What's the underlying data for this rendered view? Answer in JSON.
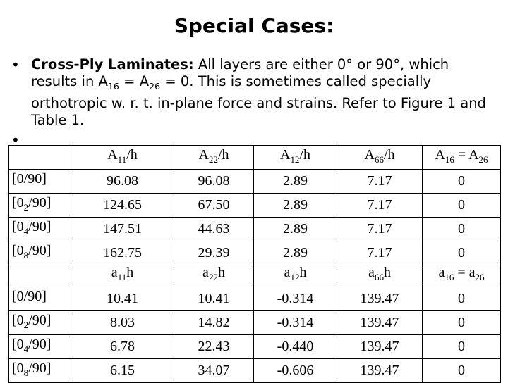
{
  "title": "Special Cases:",
  "bullet1": {
    "term": "Cross-Ply Laminates:",
    "text_a": " All layers are either 0° or 90°, which results in A",
    "sub_a": "16",
    "text_b": " = A",
    "sub_b": "26",
    "text_c": " = 0. This is sometimes called specially orthotropic w. r. t. in-plane force and strains. Refer to Figure 1 and Table 1."
  },
  "bullet_char": "•",
  "table1": {
    "headers": [
      {
        "base": "A",
        "sub": "11",
        "suffix": "/h"
      },
      {
        "base": "A",
        "sub": "22",
        "suffix": "/h"
      },
      {
        "base": "A",
        "sub": "12",
        "suffix": "/h"
      },
      {
        "base": "A",
        "sub": "66",
        "suffix": "/h"
      },
      {
        "base": "A",
        "sub": "16",
        "mid": " = A",
        "sub2": "26"
      }
    ],
    "rows": [
      {
        "lam_a": "[0/90]",
        "lam_sub": "",
        "lam_b": "",
        "values": [
          "96.08",
          "96.08",
          "2.89",
          "7.17",
          "0"
        ]
      },
      {
        "lam_a": "[0",
        "lam_sub": "2",
        "lam_b": "/90]",
        "values": [
          "124.65",
          "67.50",
          "2.89",
          "7.17",
          "0"
        ]
      },
      {
        "lam_a": "[0",
        "lam_sub": "4",
        "lam_b": "/90]",
        "values": [
          "147.51",
          "44.63",
          "2.89",
          "7.17",
          "0"
        ]
      },
      {
        "lam_a": "[0",
        "lam_sub": "8",
        "lam_b": "/90]",
        "values": [
          "162.75",
          "29.39",
          "2.89",
          "7.17",
          "0"
        ]
      }
    ]
  },
  "table2": {
    "headers": [
      {
        "base": "a",
        "sub": "11",
        "suffix": "h"
      },
      {
        "base": "a",
        "sub": "22",
        "suffix": "h"
      },
      {
        "base": "a",
        "sub": "12",
        "suffix": "h"
      },
      {
        "base": "a",
        "sub": "66",
        "suffix": "h"
      },
      {
        "base": "a",
        "sub": "16",
        "mid": " = a",
        "sub2": "26"
      }
    ],
    "rows": [
      {
        "lam_a": "[0/90]",
        "lam_sub": "",
        "lam_b": "",
        "values": [
          "10.41",
          "10.41",
          "-0.314",
          "139.47",
          "0"
        ]
      },
      {
        "lam_a": "[0",
        "lam_sub": "2",
        "lam_b": "/90]",
        "values": [
          "8.03",
          "14.82",
          "-0.314",
          "139.47",
          "0"
        ]
      },
      {
        "lam_a": "[0",
        "lam_sub": "4",
        "lam_b": "/90]",
        "values": [
          "6.78",
          "22.43",
          "-0.440",
          "139.47",
          "0"
        ]
      },
      {
        "lam_a": "[0",
        "lam_sub": "8",
        "lam_b": "/90]",
        "values": [
          "6.15",
          "34.07",
          "-0.606",
          "139.47",
          "0"
        ]
      }
    ]
  }
}
